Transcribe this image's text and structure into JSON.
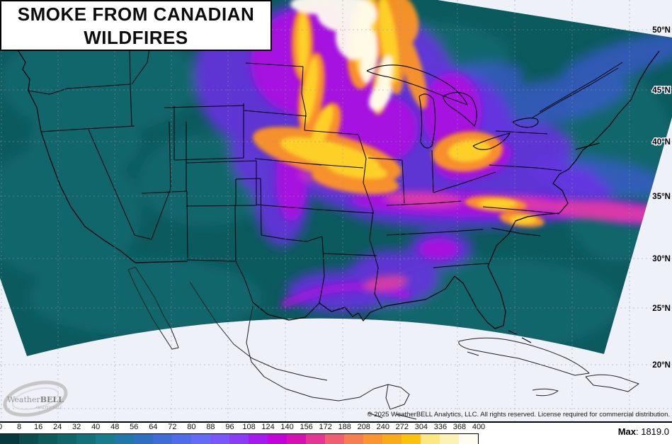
{
  "title": {
    "line1": "SMOKE FROM CANADIAN",
    "line2": "WILDFIRES"
  },
  "map": {
    "lat_labels": [
      {
        "label": "50°N"
      },
      {
        "label": "45°N"
      },
      {
        "label": "40°N"
      },
      {
        "label": "35°N"
      },
      {
        "label": "30°N"
      },
      {
        "label": "25°N"
      },
      {
        "label": "20°N"
      }
    ],
    "copyright": "© 2025 WeatherBELL Analytics, LLC. All rights reserved. License required for commercial distribution.",
    "logo": {
      "name_part1": "Weather",
      "name_part2": "BELL",
      "sub": "ANALYTICS LLC"
    }
  },
  "colorbar": {
    "ticks": [
      "0",
      "8",
      "16",
      "24",
      "32",
      "40",
      "48",
      "56",
      "64",
      "72",
      "80",
      "88",
      "96",
      "108",
      "124",
      "140",
      "156",
      "172",
      "188",
      "208",
      "240",
      "272",
      "304",
      "336",
      "368",
      "400"
    ],
    "gradient_colors": [
      "#063a3e",
      "#0a4d4f",
      "#0d5a5b",
      "#0f6668",
      "#137179",
      "#177d8d",
      "#1f78a8",
      "#2e6fc2",
      "#3f6dd8",
      "#506ceb",
      "#636bf7",
      "#7a57fa",
      "#8b3df6",
      "#a51aef",
      "#c303d9",
      "#d511b4",
      "#e43693",
      "#ef5f73",
      "#f57f50",
      "#f9962f",
      "#fbab19",
      "#fdc20c",
      "#fce882",
      "#fdf2b6",
      "#fffdf2"
    ],
    "max_label": "Max",
    "max_value": ": 1819.0"
  },
  "colors": {
    "background": "#eff1f8",
    "smoke_base": "#0b5a5e",
    "frame": "#000000",
    "grid": "#8f96a8"
  }
}
